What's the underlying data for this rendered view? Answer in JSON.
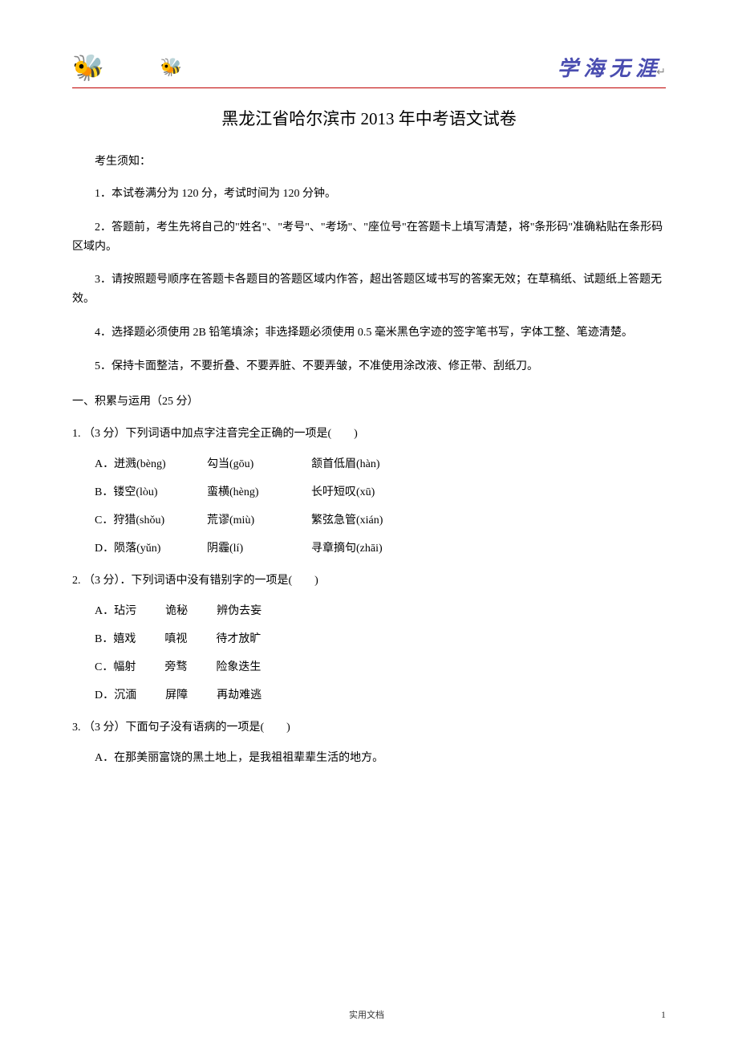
{
  "header": {
    "calligraphy": "学 海 无 涯",
    "icon_large": "🐝",
    "icon_small": "🐝"
  },
  "title": "黑龙江省哈尔滨市 2013 年中考语文试卷",
  "instructions": {
    "heading": "考生须知：",
    "items": [
      "1．本试卷满分为 120 分，考试时间为 120 分钟。",
      "2．答题前，考生先将自己的\"姓名\"、\"考号\"、\"考场\"、\"座位号\"在答题卡上填写清楚，将\"条形码\"准确粘贴在条形码区域内。",
      "3．请按照题号顺序在答题卡各题目的答题区域内作答，超出答题区域书写的答案无效；在草稿纸、试题纸上答题无效。",
      "4．选择题必须使用 2B 铅笔填涂；非选择题必须使用 0.5 毫米黑色字迹的签字笔书写，字体工整、笔迹清楚。",
      "5．保持卡面整洁，不要折叠、不要弄脏、不要弄皱，不准使用涂改液、修正带、刮纸刀。"
    ]
  },
  "section1": {
    "heading": "一、积累与运用（25 分）"
  },
  "q1": {
    "stem": "1. （3 分）下列词语中加点字注音完全正确的一项是(　　)",
    "options": [
      {
        "label": "A．迸溅(bèng)",
        "c2": "勾当(gōu)",
        "c3": "颔首低眉(hàn)"
      },
      {
        "label": "B．镂空(lòu)",
        "c2": "蛮横(hèng)",
        "c3": "长吁短叹(xū)"
      },
      {
        "label": "C．狩猎(shǒu)",
        "c2": "荒谬(miù)",
        "c3": "繁弦急管(xián)"
      },
      {
        "label": "D．陨落(yǔn)",
        "c2": "阴霾(lí)",
        "c3": "寻章摘句(zhāi)"
      }
    ]
  },
  "q2": {
    "stem": "2. （3 分）．下列词语中没有错别字的一项是(　　)",
    "options": [
      {
        "label": "A．玷污",
        "c2": "诡秘",
        "c3": "辨伪去妄"
      },
      {
        "label": "B．嬉戏",
        "c2": "嗔视",
        "c3": "待才放旷"
      },
      {
        "label": "C．幅射",
        "c2": "旁骛",
        "c3": "险象迭生"
      },
      {
        "label": "D．沉湎",
        "c2": "屏障",
        "c3": "再劫难逃"
      }
    ]
  },
  "q3": {
    "stem": "3. （3 分）下面句子没有语病的一项是(　　)",
    "optA": "A．在那美丽富饶的黑土地上，是我祖祖辈辈生活的地方。"
  },
  "footer": {
    "center": "实用文档",
    "page": "1"
  },
  "colors": {
    "header_line": "#c00000",
    "calligraphy": "#4a4db0",
    "text": "#000000",
    "bg": "#ffffff"
  }
}
